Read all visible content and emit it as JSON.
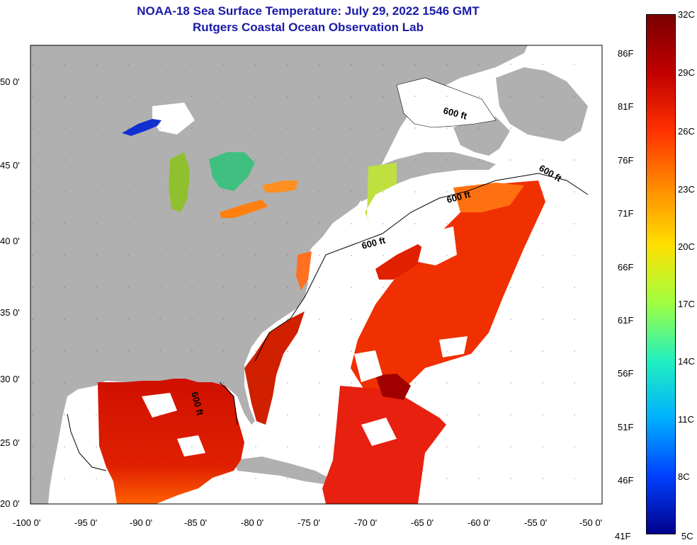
{
  "header": {
    "title": "NOAA-18 Sea Surface Temperature:  July 29, 2022 1546 GMT",
    "subtitle": "Rutgers Coastal Ocean Observation Lab"
  },
  "axes": {
    "lat_labels": [
      "50 0'",
      "45 0'",
      "40 0'",
      "35 0'",
      "30 0'",
      "25 0'",
      "20 0'"
    ],
    "lon_labels": [
      "-100 0'",
      "-95 0'",
      "-90 0'",
      "-85 0'",
      "-80 0'",
      "-75 0'",
      "-70 0'",
      "-65 0'",
      "-60 0'",
      "-55 0'",
      "-50 0'"
    ]
  },
  "contour_labels": [
    "600 ft",
    "600 ft",
    "600 ft",
    "600 ft",
    "600 ft"
  ],
  "colorbar": {
    "celsius": [
      "32C",
      "29C",
      "26C",
      "23C",
      "20C",
      "17C",
      "14C",
      "11C",
      "8C",
      "5C"
    ],
    "fahrenheit": [
      "86F",
      "81F",
      "76F",
      "71F",
      "66F",
      "61F",
      "56F",
      "51F",
      "46F",
      "41F"
    ],
    "colors": [
      "#7a0000",
      "#c00000",
      "#ff3000",
      "#ff8c00",
      "#ffe000",
      "#a0ff40",
      "#20f0c0",
      "#00b0ff",
      "#0040ff",
      "#00008c"
    ]
  },
  "colors": {
    "land": "#b0b0b0",
    "ocean_nodata": "#ffffff",
    "title": "#1a1aa6"
  }
}
